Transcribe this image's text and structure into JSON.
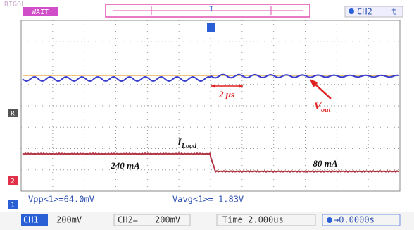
{
  "header": {
    "brand": "RIGOL",
    "status": "WAIT",
    "trigger_marker": "T",
    "channel": "CH2",
    "edge": "ƭ"
  },
  "markers": {
    "ref": "R",
    "ch2": "2",
    "ch1": "1"
  },
  "annotations": {
    "period": "2 μs",
    "vout": "V",
    "vout_sub": "out",
    "iload": "I",
    "iload_sub": "Load",
    "current_before": "240 mA",
    "current_after": "80 mA"
  },
  "measurements": {
    "vpp": "Vpp<1>=64.0mV",
    "vavg": "Vavg<1>= 1.83V"
  },
  "status_bar": {
    "ch1": "CH1",
    "ch1_scale": "200mV",
    "ch2": "CH2=",
    "ch2_scale": "200mV",
    "time": "Time 2.000us",
    "offset": "→0.0000s"
  }
}
